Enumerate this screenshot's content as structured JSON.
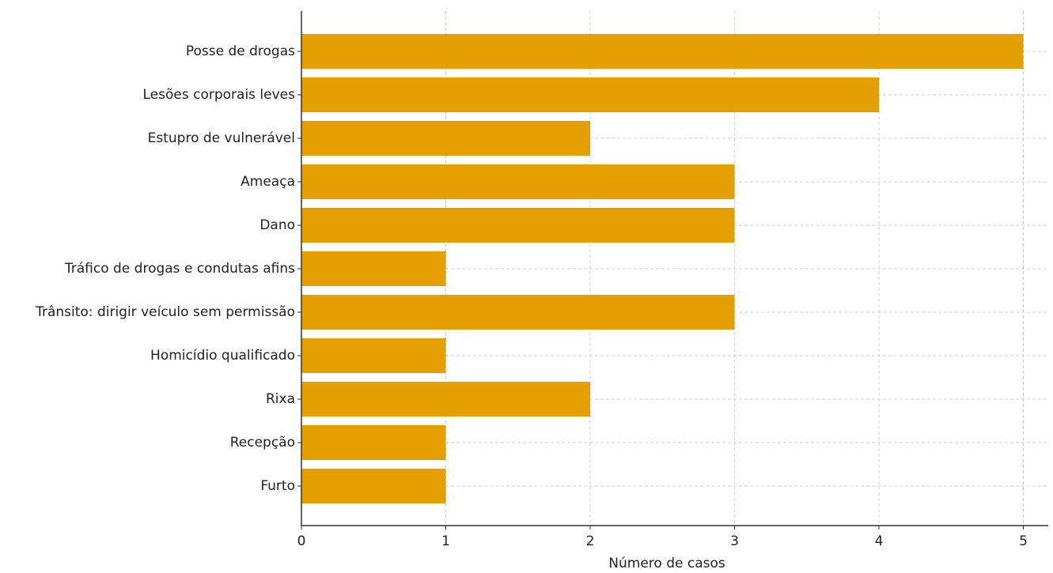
{
  "chart_data": {
    "type": "bar",
    "orientation": "horizontal",
    "title": "",
    "xlabel": "Número de casos",
    "ylabel": "",
    "xlim": [
      0,
      5.2
    ],
    "x_ticks": [
      0,
      1,
      2,
      3,
      4,
      5
    ],
    "grid": true,
    "bar_color": "#E69F00",
    "categories": [
      "Posse de drogas",
      "Lesões corporais leves",
      "Estupro de vulnerável",
      "Ameaça",
      "Dano",
      "Tráfico de drogas e condutas afins",
      "Trânsito: dirigir veículo sem permissão",
      "Homicídio qualificado",
      "Rixa",
      "Recepção",
      "Furto"
    ],
    "values": [
      5,
      4,
      2,
      3,
      3,
      1,
      3,
      1,
      2,
      1,
      1
    ]
  }
}
